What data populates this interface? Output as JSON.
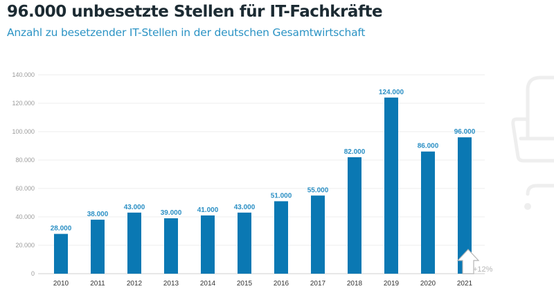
{
  "header": {
    "title": "96.000 unbesetzte Stellen für IT-Fachkräfte",
    "subtitle": "Anzahl zu besetzender IT-Stellen in der deutschen Gesamtwirtschaft"
  },
  "colors": {
    "bar": "#0a78b3",
    "data_label": "#2b8fc4",
    "title": "#1c2b33",
    "subtitle": "#2b93c4",
    "grid": "#ececec",
    "annotation": "#b5b5b5"
  },
  "chart_data": {
    "type": "bar",
    "title": "96.000 unbesetzte Stellen für IT-Fachkräfte",
    "subtitle": "Anzahl zu besetzender IT-Stellen in der deutschen Gesamtwirtschaft",
    "xlabel": "",
    "ylabel": "",
    "categories": [
      "2010",
      "2011",
      "2012",
      "2013",
      "2014",
      "2015",
      "2016",
      "2017",
      "2018",
      "2019",
      "2020",
      "2021"
    ],
    "values": [
      28000,
      38000,
      43000,
      39000,
      41000,
      43000,
      51000,
      55000,
      82000,
      124000,
      86000,
      96000
    ],
    "data_labels": [
      "28.000",
      "38.000",
      "43.000",
      "39.000",
      "41.000",
      "43.000",
      "51.000",
      "55.000",
      "82.000",
      "124.000",
      "86.000",
      "96.000"
    ],
    "ylim": [
      0,
      140000
    ],
    "yticks": [
      0,
      20000,
      40000,
      60000,
      80000,
      100000,
      120000,
      140000
    ],
    "ytick_labels": [
      "0",
      "20.000",
      "40.000",
      "60.000",
      "80.000",
      "100.000",
      "120.000",
      "140.000"
    ],
    "grid": true,
    "legend": "none",
    "annotations": [
      {
        "category": "2021",
        "text": "+12%",
        "icon": "up-arrow-icon"
      }
    ]
  },
  "background_decoration": {
    "icon": "armchair-icon"
  }
}
